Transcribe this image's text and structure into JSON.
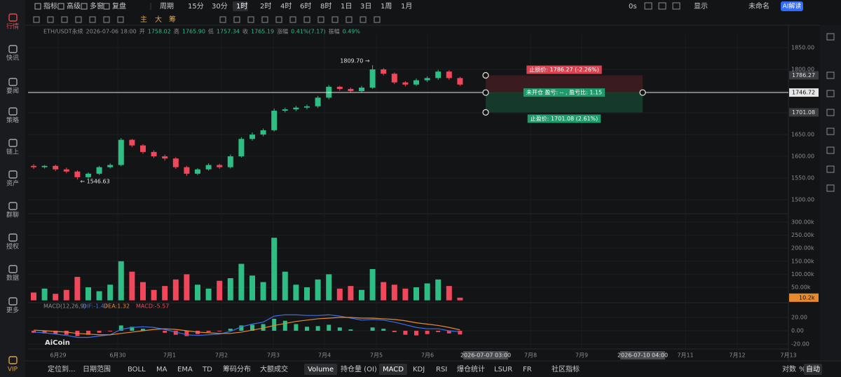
{
  "sidebar": {
    "items": [
      "行情",
      "快讯",
      "要闻",
      "策略",
      "链上",
      "资产",
      "群聊",
      "授权",
      "数据",
      "更多",
      "VIP"
    ],
    "active": 0
  },
  "toolbar_top": {
    "items": [
      "指标",
      "高级",
      "多窗",
      "复盘",
      "周期",
      "15分",
      "30分",
      "1时",
      "2时",
      "4时",
      "6时",
      "8时",
      "1日",
      "3日",
      "1周",
      "1月"
    ],
    "active": 7
  },
  "toolbar_tools": [
    "主",
    "大",
    "筹"
  ],
  "toolbar_right": {
    "timer": "0s",
    "display": "显示",
    "layout": "未命名",
    "ai": "AI解读"
  },
  "info_line": {
    "symbol": "ETH/USDT永续",
    "datetime": "2026-07-06 18:00",
    "fields": [
      {
        "label": "开",
        "value": "1758.02"
      },
      {
        "label": "高",
        "value": "1765.90"
      },
      {
        "label": "低",
        "value": "1757.34"
      },
      {
        "label": "收",
        "value": "1765.19"
      },
      {
        "label": "涨幅",
        "value": "0.41%(7.17)"
      },
      {
        "label": "振幅",
        "value": "0.49%"
      }
    ]
  },
  "time_axis": [
    "6月29",
    "6月30",
    "7月1",
    "7月2",
    "7月3",
    "7月4",
    "7月5",
    "7月6",
    "2026-07-07 03:00",
    "7月8",
    "7月9",
    "2026-07-10 04:00",
    "7月11",
    "7月12",
    "7月13"
  ],
  "position_tool": {
    "stop_price": 1786.27,
    "stop_label": "止损价: 1786.27 (-2.26%)",
    "stop_tag": "1786.27",
    "entry_price": 1746.72,
    "entry_label": "未开仓 盈亏: -- , 盈亏比: 1.15",
    "entry_tag": "1746.72",
    "take_price": 1701.08,
    "take_label": "止盈价: 1701.08 (2.61%)",
    "take_tag": "1701.08"
  },
  "bottom_bar": {
    "locate": "定位到...",
    "range": "日期范围",
    "indicators": [
      "BOLL",
      "MA",
      "EMA",
      "TD",
      "筹码分布",
      "大额成交",
      "Volume",
      "持仓量 (OI)",
      "MACD",
      "KDJ",
      "RSI",
      "爆仓统计",
      "LSUR",
      "FR",
      "社区指标"
    ],
    "active": [
      6,
      8
    ],
    "right": [
      "对数",
      "%",
      "自动"
    ]
  },
  "watermark": "AiCoin",
  "chart_data": [
    {
      "type": "candlestick",
      "up_color": "#2ebd85",
      "down_color": "#f0475b",
      "open": [
        1578,
        1575,
        1578,
        1570,
        1565,
        1552,
        1560,
        1575,
        1580,
        1638,
        1625,
        1610,
        1600,
        1595,
        1575,
        1560,
        1570,
        1580,
        1575,
        1600,
        1640,
        1650,
        1660,
        1705,
        1708,
        1712,
        1715,
        1735,
        1760,
        1755,
        1750,
        1758,
        1800,
        1790,
        1770,
        1765,
        1775,
        1780,
        1795,
        1780
      ],
      "high": [
        1582,
        1580,
        1581,
        1574,
        1568,
        1563,
        1578,
        1584,
        1642,
        1640,
        1628,
        1614,
        1604,
        1598,
        1578,
        1573,
        1584,
        1583,
        1604,
        1644,
        1655,
        1664,
        1710,
        1712,
        1716,
        1719,
        1739,
        1764,
        1762,
        1758,
        1762,
        1809.7,
        1803,
        1793,
        1773,
        1779,
        1784,
        1799,
        1798,
        1783
      ],
      "low": [
        1571,
        1572,
        1566,
        1561,
        1546.63,
        1549,
        1557,
        1572,
        1577,
        1621,
        1606,
        1596,
        1590,
        1571,
        1555,
        1557,
        1567,
        1571,
        1572,
        1597,
        1636,
        1646,
        1657,
        1701,
        1704,
        1708,
        1711,
        1731,
        1751,
        1746,
        1747,
        1755,
        1786,
        1766,
        1761,
        1762,
        1771,
        1776,
        1776,
        1762
      ],
      "close": [
        1575,
        1578,
        1570,
        1565,
        1552,
        1560,
        1575,
        1580,
        1638,
        1625,
        1610,
        1600,
        1595,
        1575,
        1560,
        1570,
        1580,
        1575,
        1600,
        1640,
        1650,
        1660,
        1705,
        1708,
        1712,
        1715,
        1735,
        1760,
        1755,
        1750,
        1758,
        1800,
        1790,
        1770,
        1765,
        1775,
        1780,
        1795,
        1780,
        1765
      ],
      "annotations": [
        {
          "text": "← 1546.63",
          "index": 4,
          "at": "low"
        },
        {
          "text": "1809.70 →",
          "index": 31,
          "at": "high"
        }
      ],
      "ylim": [
        1476,
        1879
      ],
      "yticks": [
        {
          "value": 1850,
          "label": "1850.00"
        },
        {
          "value": 1800,
          "label": "1800.00"
        },
        {
          "value": 1750,
          "label": "1750.00"
        },
        {
          "value": 1700,
          "label": "1700.00"
        },
        {
          "value": 1650,
          "label": "1650.00"
        },
        {
          "value": 1600,
          "label": "1600.00"
        },
        {
          "value": 1550,
          "label": "1550.00"
        },
        {
          "value": 1500,
          "label": "1500.00"
        }
      ],
      "grid": true
    },
    {
      "type": "bar",
      "values": [
        30000,
        45000,
        25000,
        40000,
        90000,
        50000,
        35000,
        60000,
        150000,
        110000,
        70000,
        40000,
        55000,
        80000,
        100000,
        60000,
        45000,
        75000,
        85000,
        140000,
        95000,
        70000,
        240000,
        110000,
        60000,
        50000,
        80000,
        100000,
        45000,
        55000,
        40000,
        120000,
        70000,
        60000,
        45000,
        50000,
        65000,
        80000,
        55000,
        10200
      ],
      "current": {
        "value": 10200,
        "label": "10.2k"
      },
      "ylim": [
        0,
        318800
      ],
      "yticks": [
        {
          "value": 300000,
          "label": "300.00k"
        },
        {
          "value": 250000,
          "label": "250.00k"
        },
        {
          "value": 200000,
          "label": "200.00k"
        },
        {
          "value": 150000,
          "label": "150.00k"
        },
        {
          "value": 100000,
          "label": "100.00k"
        },
        {
          "value": 50000,
          "label": "50.00k"
        }
      ],
      "grid": true
    },
    {
      "type": "macd",
      "title": "MACD(12,26,9)",
      "legend": [
        "DIF:-1.47",
        "DEA:1.32",
        "MACD:-5.57"
      ],
      "series": [
        {
          "color": "#3d6ee8",
          "values": [
            -2,
            -3,
            -5,
            -7,
            -10,
            -10,
            -8,
            -6,
            2,
            5,
            6,
            5,
            2,
            -2,
            -6,
            -7,
            -6,
            -5,
            -1,
            6,
            10,
            13,
            22,
            24,
            24,
            23,
            23,
            24,
            22,
            19,
            16,
            17,
            16,
            13,
            9,
            5,
            3,
            3,
            0,
            -1.47
          ]
        },
        {
          "color": "#e8892e",
          "values": [
            1,
            0,
            -1,
            -2,
            -4,
            -5,
            -6,
            -6,
            -4,
            -2,
            0,
            2,
            3,
            2,
            0,
            -2,
            -3,
            -4,
            -4,
            -2,
            1,
            4,
            8,
            11,
            14,
            16,
            18,
            19,
            20,
            20,
            19,
            19,
            18,
            17,
            15,
            12,
            10,
            8,
            5,
            1.32
          ]
        }
      ],
      "histogram": [
        -3,
        -4,
        -5,
        -6,
        -8,
        -6,
        -3,
        -1,
        8,
        6,
        3,
        0,
        -3,
        -6,
        -8,
        -5,
        -2,
        -1,
        3,
        8,
        9,
        10,
        18,
        15,
        10,
        6,
        7,
        9,
        5,
        2,
        0,
        5,
        3,
        -2,
        -6,
        -7,
        -5,
        -2,
        -4,
        -5.57
      ],
      "ylim": [
        -26.3,
        33.7
      ],
      "yticks": [
        {
          "value": 20,
          "label": "20.00"
        },
        {
          "value": 0,
          "label": "0.00"
        },
        {
          "value": -20,
          "label": "-20.00"
        }
      ],
      "grid": true
    }
  ]
}
